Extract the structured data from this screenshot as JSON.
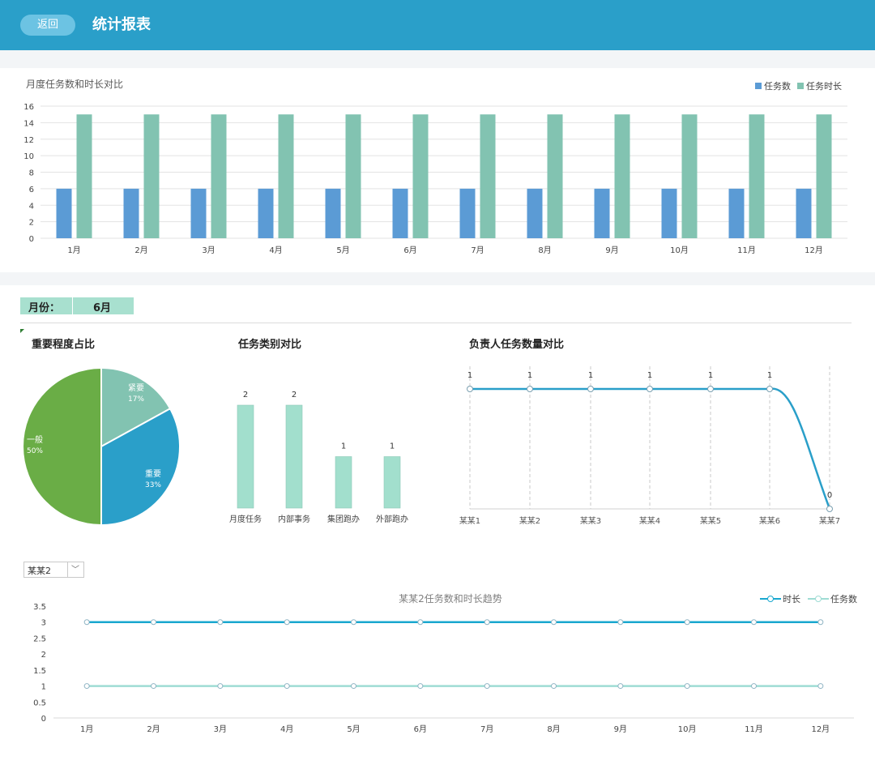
{
  "header": {
    "back_label": "返回",
    "title": "统计报表"
  },
  "chart_top": {
    "title": "月度任务数和时长对比",
    "legend": [
      "任务数",
      "任务时长"
    ],
    "y_ticks": [
      "16",
      "14",
      "12",
      "10",
      "8",
      "6",
      "4",
      "2",
      "0"
    ],
    "colors": {
      "count": "#5b9bd5",
      "duration": "#82c3b1"
    }
  },
  "filter": {
    "label": "月份：",
    "value": "6月"
  },
  "pie": {
    "title": "重要程度占比"
  },
  "category": {
    "title": "任务类别对比"
  },
  "owner": {
    "title": "负责人任务数量对比"
  },
  "person_select": {
    "value": "某某2",
    "chevron": "﹀"
  },
  "trend": {
    "title": "某某2任务数和时长趋势",
    "legend": [
      "时长",
      "任务数"
    ],
    "y_ticks": [
      "3.5",
      "3",
      "2.5",
      "2",
      "1.5",
      "1",
      "0.5",
      "0"
    ]
  },
  "chart_data": [
    {
      "type": "bar",
      "title": "月度任务数和时长对比",
      "categories": [
        "1月",
        "2月",
        "3月",
        "4月",
        "5月",
        "6月",
        "7月",
        "8月",
        "9月",
        "10月",
        "11月",
        "12月"
      ],
      "series": [
        {
          "name": "任务数",
          "values": [
            6,
            6,
            6,
            6,
            6,
            6,
            6,
            6,
            6,
            6,
            6,
            6
          ]
        },
        {
          "name": "任务时长",
          "values": [
            15,
            15,
            15,
            15,
            15,
            15,
            15,
            15,
            15,
            15,
            15,
            15
          ]
        }
      ],
      "ylim": [
        0,
        16
      ],
      "grid": true,
      "legend_position": "top-right"
    },
    {
      "type": "pie",
      "title": "重要程度占比",
      "slices": [
        {
          "label": "紧要",
          "percent": "17%",
          "value": 17,
          "color": "#82c3b1"
        },
        {
          "label": "重要",
          "percent": "33%",
          "value": 33,
          "color": "#2a9fc9"
        },
        {
          "label": "一般",
          "percent": "50%",
          "value": 50,
          "color": "#6aad46"
        }
      ]
    },
    {
      "type": "bar",
      "title": "任务类别对比",
      "categories": [
        "月度任务",
        "内部事务",
        "集团跑办",
        "外部跑办"
      ],
      "values": [
        2,
        2,
        1,
        1
      ],
      "labels": [
        "2",
        "2",
        "1",
        "1"
      ],
      "ylim": [
        0,
        2
      ],
      "color": "#a2dfcd"
    },
    {
      "type": "line",
      "title": "负责人任务数量对比",
      "categories": [
        "某某1",
        "某某2",
        "某某3",
        "某某4",
        "某某5",
        "某某6",
        "某某7"
      ],
      "values": [
        1,
        1,
        1,
        1,
        1,
        1,
        0
      ],
      "labels": [
        "1",
        "1",
        "1",
        "1",
        "1",
        "1",
        "0"
      ],
      "ylim": [
        0,
        1
      ],
      "color": "#2a9fc9"
    },
    {
      "type": "line",
      "title": "某某2任务数和时长趋势",
      "categories": [
        "1月",
        "2月",
        "3月",
        "4月",
        "5月",
        "6月",
        "7月",
        "8月",
        "9月",
        "10月",
        "11月",
        "12月"
      ],
      "series": [
        {
          "name": "时长",
          "values": [
            3,
            3,
            3,
            3,
            3,
            3,
            3,
            3,
            3,
            3,
            3,
            3
          ],
          "color": "#19a7cf"
        },
        {
          "name": "任务数",
          "values": [
            1,
            1,
            1,
            1,
            1,
            1,
            1,
            1,
            1,
            1,
            1,
            1
          ],
          "color": "#9edcd4"
        }
      ],
      "ylim": [
        0,
        3.5
      ],
      "grid": true,
      "legend_position": "top-right"
    }
  ]
}
